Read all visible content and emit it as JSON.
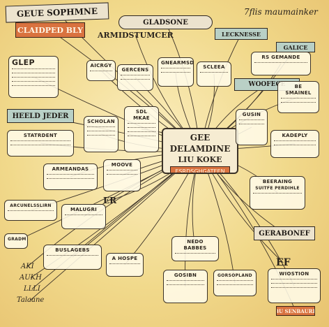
{
  "corner_title": "7flis maumainker",
  "center": {
    "title": "GEE DELAMDINE",
    "subtitle": "LIU KOKE",
    "tag": "ESRDSGHGATEEN"
  },
  "banners": {
    "top_left": "GEUE SOPHMNE",
    "top_left_orange": "CLAIDPED BLY",
    "armd": "ARMIDSTUMCER",
    "gladsone": "GLADSONE",
    "lecknes": "LECKNESSE",
    "galice": "GALICE",
    "woofece": "WOOFECE",
    "hefal": "HEELD JEDER",
    "gerabone": "GERABONEF",
    "bottom_badge": "BU SENBAURE"
  },
  "nodes": [
    {
      "title": "GLEP"
    },
    {
      "title": "STATRDENT"
    },
    {
      "title": "ARMEANDAS"
    },
    {
      "title": "ARCUNELSSLIRN"
    },
    {
      "title": "GRADM"
    },
    {
      "title": "BUSLAGEBS"
    },
    {
      "title": "MALUGRI"
    },
    {
      "title": "ER"
    },
    {
      "title": "MOOVE"
    },
    {
      "title": "AICRGY"
    },
    {
      "title": "GERCENS"
    },
    {
      "title": "SDL MKAE"
    },
    {
      "title": "GNEARMSD"
    },
    {
      "title": "SCLEEA"
    },
    {
      "title": "SCHOLAN"
    },
    {
      "title": "RS GEMANDE"
    },
    {
      "title": "BE SMAINEL"
    },
    {
      "title": "KADEPLY"
    },
    {
      "title": "BEERAING"
    },
    {
      "title": "SUITFE PERDIHLE"
    },
    {
      "title": "GUSIN"
    },
    {
      "title": "NEDO BABBES"
    },
    {
      "title": "GORSOPLAND"
    },
    {
      "title": "EF"
    },
    {
      "title": "WIOSTION"
    },
    {
      "title": "GOSIBN"
    },
    {
      "title": "A HOSPE"
    }
  ],
  "handwriting": {
    "line1": "AKI",
    "line2": "AUKH",
    "line3": "LLLI",
    "line4": "Talaane"
  }
}
